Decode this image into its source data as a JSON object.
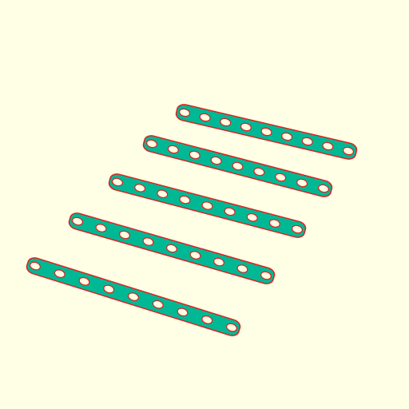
{
  "scene": {
    "background_color": "#ffffe5",
    "strip_fill_color": "#00b894",
    "outline_color": "#e02020",
    "hole_fill_color": "#ffffe5",
    "strip_count": 5,
    "strips": [
      {
        "name": "perforated-strip-1",
        "hole_count": 9
      },
      {
        "name": "perforated-strip-2",
        "hole_count": 9
      },
      {
        "name": "perforated-strip-3",
        "hole_count": 9
      },
      {
        "name": "perforated-strip-4",
        "hole_count": 9
      },
      {
        "name": "perforated-strip-5",
        "hole_count": 9
      }
    ]
  }
}
